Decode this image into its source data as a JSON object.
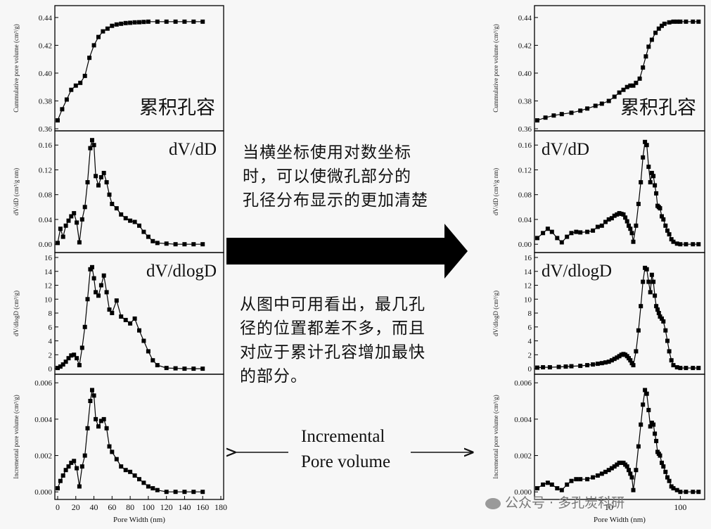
{
  "annotations": {
    "cumulative_label": "累积孔容",
    "log_note_lines": [
      "当横坐标使用对数坐标",
      "时，可以使微孔部分的",
      "孔径分布显示的更加清楚"
    ],
    "peak_note_lines": [
      "从图中可用看出，最几孔",
      "径的位置都差不多，而且",
      "对应于累计孔容增加最快",
      "的部分。"
    ],
    "incremental_lines": [
      "Incremental",
      "Pore volume"
    ]
  },
  "watermark": "公众号 · 多孔炭科研",
  "colors": {
    "line": "#000000",
    "background": "#f7f7f7",
    "frame": "#000000"
  },
  "chart_data": [
    {
      "type": "line",
      "title": "累积孔容",
      "ylabel": "Cummulative pore volume (cm³/g)",
      "xlabel": "",
      "xlim": [
        0,
        180
      ],
      "ylim": [
        0.36,
        0.445
      ],
      "yticks": [
        "0.36",
        "0.38",
        "0.40",
        "0.42",
        "0.44"
      ],
      "series": [
        {
          "x": [
            0,
            5,
            10,
            15,
            20,
            25,
            30,
            35,
            40,
            45,
            50,
            55,
            60,
            65,
            70,
            75,
            80,
            85,
            90,
            95,
            100,
            110,
            120,
            130,
            140,
            150,
            160
          ],
          "values": [
            0.366,
            0.374,
            0.381,
            0.388,
            0.391,
            0.393,
            0.398,
            0.411,
            0.42,
            0.426,
            0.43,
            0.432,
            0.434,
            0.435,
            0.4355,
            0.436,
            0.4362,
            0.4365,
            0.4366,
            0.4368,
            0.437,
            0.437,
            0.437,
            0.437,
            0.437,
            0.437,
            0.437
          ]
        }
      ]
    },
    {
      "type": "line",
      "title": "dV/dD",
      "ylabel": "dV/dD (cm³/g nm)",
      "xlabel": "",
      "xlim": [
        0,
        180
      ],
      "ylim": [
        -0.01,
        0.175
      ],
      "yticks": [
        "0.00",
        "0.04",
        "0.08",
        "0.12",
        "0.16"
      ],
      "series": [
        {
          "x": [
            0,
            3,
            6,
            9,
            12,
            15,
            18,
            21,
            24,
            27,
            30,
            33,
            36,
            38,
            40,
            42,
            45,
            48,
            51,
            54,
            57,
            60,
            65,
            70,
            75,
            80,
            85,
            90,
            95,
            100,
            105,
            110,
            120,
            130,
            140,
            150,
            160
          ],
          "values": [
            0.002,
            0.025,
            0.012,
            0.03,
            0.038,
            0.045,
            0.05,
            0.035,
            0.003,
            0.04,
            0.06,
            0.1,
            0.155,
            0.168,
            0.16,
            0.11,
            0.095,
            0.108,
            0.115,
            0.1,
            0.08,
            0.065,
            0.058,
            0.048,
            0.042,
            0.038,
            0.036,
            0.03,
            0.02,
            0.012,
            0.005,
            0.002,
            0.001,
            0.0,
            0.0,
            0.0,
            0.0
          ]
        }
      ]
    },
    {
      "type": "line",
      "title": "dV/dlogD",
      "ylabel": "dV/dlogD (cm³/g)",
      "xlabel": "",
      "xlim": [
        0,
        180
      ],
      "ylim": [
        -0.5,
        16
      ],
      "yticks": [
        "0",
        "2",
        "4",
        "6",
        "8",
        "10",
        "12",
        "14",
        "16"
      ],
      "series": [
        {
          "x": [
            0,
            3,
            6,
            9,
            12,
            15,
            18,
            21,
            24,
            27,
            30,
            33,
            36,
            38,
            40,
            42,
            45,
            48,
            51,
            54,
            57,
            60,
            65,
            70,
            75,
            80,
            85,
            90,
            95,
            100,
            105,
            110,
            120,
            130,
            140,
            150,
            160
          ],
          "values": [
            0.1,
            0.3,
            0.6,
            1.0,
            1.5,
            1.9,
            2.0,
            1.5,
            0.5,
            3.0,
            6.0,
            10.0,
            14.3,
            14.6,
            13.0,
            11.0,
            10.5,
            12.0,
            13.4,
            11.0,
            8.5,
            8.0,
            9.8,
            7.5,
            7.0,
            6.5,
            7.2,
            5.5,
            4.0,
            2.5,
            1.2,
            0.5,
            0.1,
            0.05,
            0.0,
            0.0,
            0.0
          ]
        }
      ]
    },
    {
      "type": "line",
      "title": "",
      "ylabel": "Incremental pore volume (cm³/g)",
      "xlabel": "Pore Width (nm)",
      "xlim": [
        0,
        180
      ],
      "ylim": [
        -0.0003,
        0.0062
      ],
      "yticks": [
        "0.000",
        "0.002",
        "0.004",
        "0.006"
      ],
      "xticks": [
        "0",
        "20",
        "40",
        "60",
        "80",
        "100",
        "120",
        "140",
        "160",
        "180"
      ],
      "series": [
        {
          "x": [
            0,
            3,
            6,
            9,
            12,
            15,
            18,
            21,
            24,
            27,
            30,
            33,
            36,
            38,
            40,
            42,
            45,
            48,
            51,
            54,
            57,
            60,
            65,
            70,
            75,
            80,
            85,
            90,
            95,
            100,
            105,
            110,
            120,
            130,
            140,
            150,
            160
          ],
          "values": [
            0.0002,
            0.0006,
            0.0009,
            0.0012,
            0.0014,
            0.0016,
            0.0017,
            0.0013,
            0.0003,
            0.0014,
            0.002,
            0.0035,
            0.005,
            0.0056,
            0.0053,
            0.004,
            0.0036,
            0.0039,
            0.004,
            0.0035,
            0.0025,
            0.0022,
            0.0018,
            0.0014,
            0.0012,
            0.0011,
            0.0009,
            0.0007,
            0.0005,
            0.0003,
            0.0002,
            0.0001,
            0.0,
            0.0,
            0.0,
            0.0,
            0.0
          ]
        }
      ]
    },
    {
      "type": "line",
      "title": "累积孔容",
      "ylabel": "Cummulative pore volume (cm³/g)",
      "xlabel": "",
      "xscale": "log",
      "xlim": [
        1,
        200
      ],
      "ylim": [
        0.36,
        0.445
      ],
      "yticks": [
        "0.36",
        "0.38",
        "0.40",
        "0.42",
        "0.44"
      ],
      "series": [
        {
          "x": [
            1.0,
            1.3,
            1.7,
            2.2,
            3,
            4,
            5,
            6.5,
            8,
            10,
            12,
            14,
            16,
            18,
            20,
            22,
            24,
            27,
            30,
            33,
            36,
            40,
            45,
            50,
            55,
            60,
            70,
            80,
            90,
            100,
            120,
            150,
            180
          ],
          "values": [
            0.366,
            0.368,
            0.3695,
            0.3705,
            0.3715,
            0.373,
            0.3745,
            0.3765,
            0.378,
            0.38,
            0.383,
            0.386,
            0.388,
            0.39,
            0.391,
            0.391,
            0.393,
            0.396,
            0.404,
            0.412,
            0.419,
            0.424,
            0.429,
            0.432,
            0.434,
            0.4355,
            0.4365,
            0.437,
            0.437,
            0.437,
            0.437,
            0.437,
            0.437
          ]
        }
      ]
    },
    {
      "type": "line",
      "title": "dV/dD",
      "ylabel": "dV/dD (cm³/g nm)",
      "xlabel": "",
      "xscale": "log",
      "xlim": [
        1,
        200
      ],
      "ylim": [
        -0.01,
        0.175
      ],
      "yticks": [
        "0.00",
        "0.04",
        "0.08",
        "0.12",
        "0.16"
      ],
      "series": [
        {
          "x": [
            1.0,
            1.2,
            1.4,
            1.6,
            1.9,
            2.2,
            2.6,
            3,
            3.5,
            4,
            5,
            6,
            7,
            8,
            9,
            10,
            11,
            12,
            13,
            14,
            15,
            16,
            17,
            18,
            19,
            20,
            21,
            22,
            24,
            26,
            28,
            30,
            32,
            34,
            36,
            38,
            40,
            42,
            44,
            46,
            48,
            50,
            52,
            55,
            58,
            62,
            66,
            70,
            75,
            80,
            90,
            100,
            120,
            150,
            180
          ],
          "values": [
            0.01,
            0.018,
            0.025,
            0.02,
            0.01,
            0.003,
            0.012,
            0.018,
            0.02,
            0.019,
            0.02,
            0.022,
            0.028,
            0.03,
            0.036,
            0.04,
            0.042,
            0.046,
            0.048,
            0.05,
            0.049,
            0.048,
            0.043,
            0.037,
            0.03,
            0.025,
            0.018,
            0.004,
            0.03,
            0.065,
            0.1,
            0.14,
            0.165,
            0.16,
            0.125,
            0.1,
            0.115,
            0.11,
            0.095,
            0.082,
            0.062,
            0.06,
            0.058,
            0.045,
            0.04,
            0.03,
            0.022,
            0.016,
            0.008,
            0.004,
            0.001,
            0.0,
            0.0,
            0.0,
            0.0
          ]
        }
      ]
    },
    {
      "type": "line",
      "title": "dV/dlogD",
      "ylabel": "dV/dlogD (cm³/g)",
      "xlabel": "",
      "xscale": "log",
      "xlim": [
        1,
        200
      ],
      "ylim": [
        -0.5,
        16
      ],
      "yticks": [
        "0",
        "2",
        "4",
        "6",
        "8",
        "10",
        "12",
        "14",
        "16"
      ],
      "series": [
        {
          "x": [
            1.0,
            1.2,
            1.5,
            2,
            2.5,
            3,
            4,
            5,
            6,
            7,
            8,
            9,
            10,
            11,
            12,
            13,
            14,
            15,
            16,
            17,
            18,
            19,
            20,
            21,
            22,
            24,
            26,
            28,
            30,
            32,
            34,
            36,
            38,
            40,
            42,
            44,
            46,
            48,
            50,
            52,
            55,
            58,
            62,
            66,
            70,
            75,
            80,
            90,
            100,
            120,
            150,
            180
          ],
          "values": [
            0.15,
            0.2,
            0.2,
            0.25,
            0.3,
            0.35,
            0.4,
            0.5,
            0.6,
            0.7,
            0.8,
            0.9,
            1.0,
            1.2,
            1.4,
            1.6,
            1.8,
            2.0,
            2.1,
            2.0,
            1.8,
            1.5,
            1.2,
            0.8,
            0.5,
            2.5,
            5.5,
            9.0,
            12.5,
            14.5,
            14.3,
            12.5,
            11.0,
            13.5,
            12.5,
            10.5,
            9.0,
            8.5,
            8.0,
            7.5,
            7.2,
            6.8,
            5.5,
            4.0,
            2.5,
            1.2,
            0.5,
            0.2,
            0.1,
            0.1,
            0.1,
            0.1
          ]
        }
      ]
    },
    {
      "type": "line",
      "title": "",
      "ylabel": "Incremental pore volume (cm³/g)",
      "xlabel": "Pore Width (nm)",
      "xscale": "log",
      "xlim": [
        1,
        200
      ],
      "ylim": [
        -0.0003,
        0.0062
      ],
      "yticks": [
        "0.000",
        "0.002",
        "0.004",
        "0.006"
      ],
      "xticks": [
        "10",
        "100"
      ],
      "series": [
        {
          "x": [
            1.0,
            1.2,
            1.4,
            1.6,
            1.9,
            2.2,
            2.6,
            3,
            3.5,
            4,
            5,
            6,
            7,
            8,
            9,
            10,
            11,
            12,
            13,
            14,
            15,
            16,
            17,
            18,
            19,
            20,
            21,
            22,
            24,
            26,
            28,
            30,
            32,
            34,
            36,
            38,
            40,
            42,
            44,
            46,
            48,
            50,
            52,
            55,
            58,
            62,
            66,
            70,
            75,
            80,
            90,
            100,
            120,
            150,
            180
          ],
          "values": [
            0.0002,
            0.0004,
            0.0005,
            0.0004,
            0.0002,
            0.0001,
            0.0004,
            0.0006,
            0.0007,
            0.0007,
            0.0007,
            0.0008,
            0.0009,
            0.001,
            0.0011,
            0.0012,
            0.0013,
            0.0014,
            0.0015,
            0.0016,
            0.0016,
            0.0016,
            0.0015,
            0.0014,
            0.0012,
            0.001,
            0.0008,
            0.0001,
            0.0012,
            0.0025,
            0.0037,
            0.0048,
            0.0056,
            0.0054,
            0.0045,
            0.0036,
            0.0038,
            0.0037,
            0.0032,
            0.0028,
            0.0022,
            0.0021,
            0.002,
            0.0016,
            0.0014,
            0.0011,
            0.0008,
            0.0006,
            0.0003,
            0.0002,
            0.0001,
            0.0,
            0.0,
            0.0,
            0.0
          ]
        }
      ]
    }
  ]
}
